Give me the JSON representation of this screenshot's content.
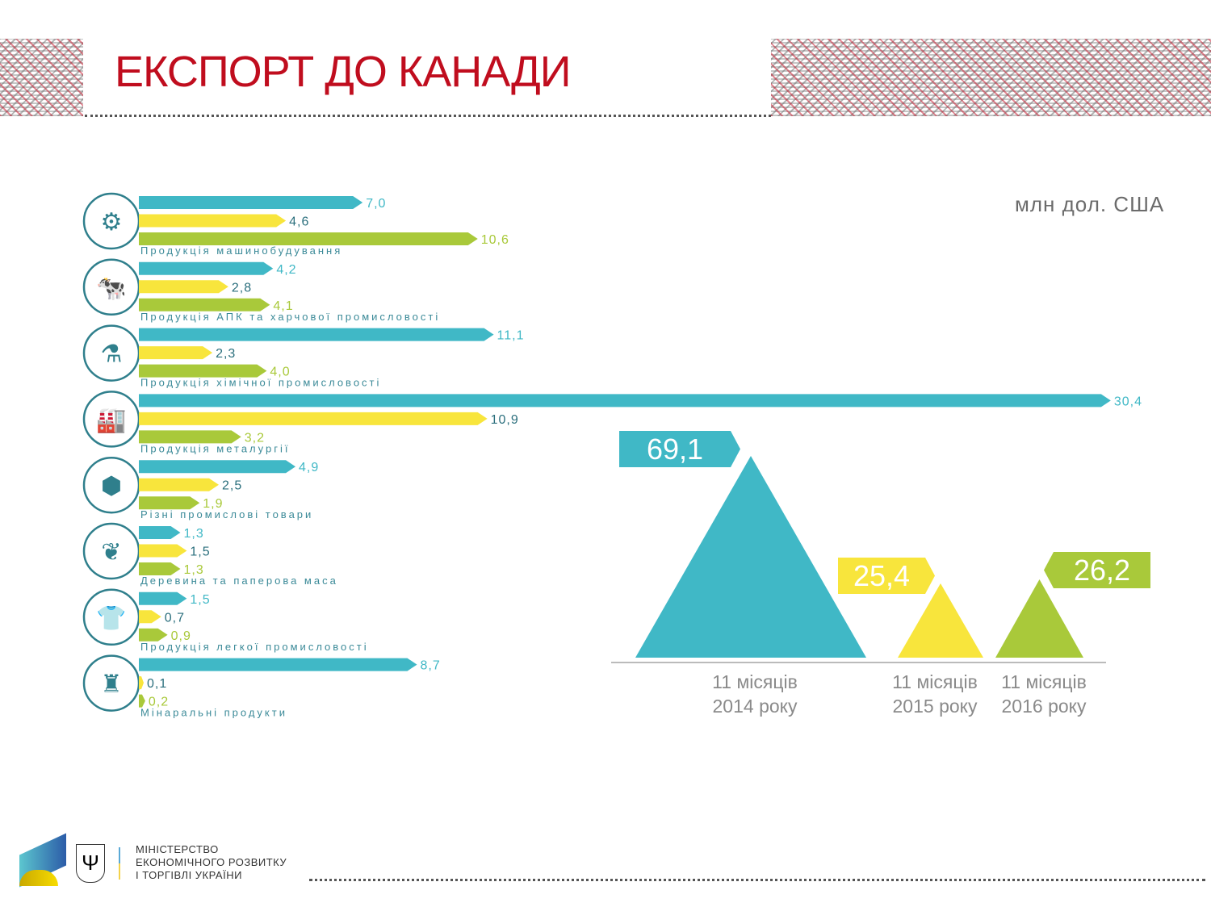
{
  "title": "ЕКСПОРТ ДО КАНАДИ",
  "ministry": [
    "МІНІСТЕРСТВО",
    "ЕКОНОМІЧНОГО РОЗВИТКУ",
    "І ТОРГІВЛІ УКРАЇНИ"
  ],
  "colors": {
    "y2014": "#40b8c6",
    "y2015": "#f8e53c",
    "y2016": "#a9c93a",
    "label2015": "#2b6f7d",
    "title": "#c00d1e"
  },
  "chart_data": {
    "type": "bar",
    "title": "ЕКСПОРТ ДО КАНАДИ",
    "unit": "млн дол. США",
    "series_names": [
      "11 місяців 2014 року",
      "11 місяців 2015 року",
      "11 місяців 2016 року"
    ],
    "categories": [
      {
        "label": "Продукція машинобудування",
        "icon": "gear-icon",
        "values": [
          7.0,
          4.6,
          10.6
        ],
        "labels": [
          "7,0",
          "4,6",
          "10,6"
        ]
      },
      {
        "label": "Продукція АПК та харчової промисловості",
        "icon": "wheat-cow-icon",
        "values": [
          4.2,
          2.8,
          4.1
        ],
        "labels": [
          "4,2",
          "2,8",
          "4,1"
        ]
      },
      {
        "label": "Продукція хімічної промисловості",
        "icon": "flask-icon",
        "values": [
          11.1,
          2.3,
          4.0
        ],
        "labels": [
          "11,1",
          "2,3",
          "4,0"
        ]
      },
      {
        "label": "Продукція металургії",
        "icon": "factory-icon",
        "values": [
          30.4,
          10.9,
          3.2
        ],
        "labels": [
          "30,4",
          "10,9",
          "3,2"
        ]
      },
      {
        "label": "Різні промислові товари",
        "icon": "nut-icon",
        "values": [
          4.9,
          2.5,
          1.9
        ],
        "labels": [
          "4,9",
          "2,5",
          "1,9"
        ]
      },
      {
        "label": "Деревина та паперова маса",
        "icon": "leaf-icon",
        "values": [
          1.3,
          1.5,
          1.3
        ],
        "labels": [
          "1,3",
          "1,5",
          "1,3"
        ]
      },
      {
        "label": "Продукція легкої промисловості",
        "icon": "tshirt-icon",
        "values": [
          1.5,
          0.7,
          0.9
        ],
        "labels": [
          "1,5",
          "0,7",
          "0,9"
        ]
      },
      {
        "label": "Мінаральні продукти",
        "icon": "oil-rig-icon",
        "values": [
          8.7,
          0.1,
          0.2
        ],
        "labels": [
          "8,7",
          "0,1",
          "0,2"
        ]
      }
    ],
    "totals": [
      {
        "period": [
          "11 місяців",
          "2014 року"
        ],
        "value": 69.1,
        "label": "69,1"
      },
      {
        "period": [
          "11 місяців",
          "2015 року"
        ],
        "value": 25.4,
        "label": "25,4"
      },
      {
        "period": [
          "11 місяців",
          "2016 року"
        ],
        "value": 26.2,
        "label": "26,2"
      }
    ]
  }
}
